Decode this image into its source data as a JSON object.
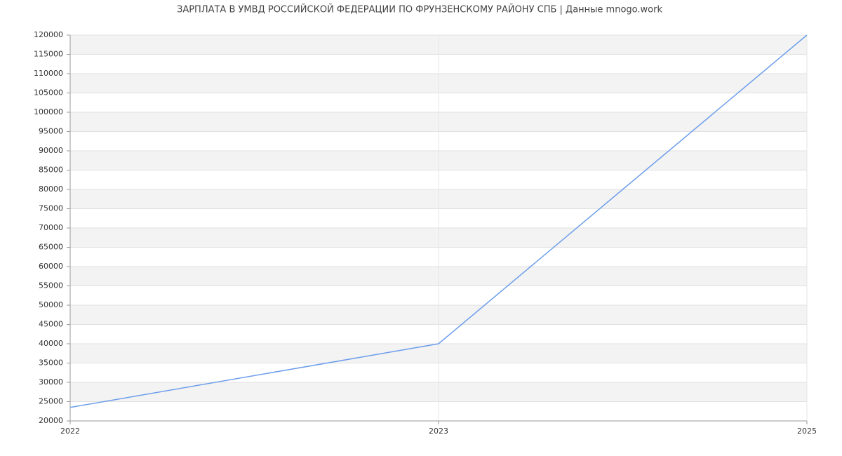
{
  "chart_data": {
    "type": "line",
    "title": "ЗАРПЛАТА В УМВД РОССИЙСКОЙ ФЕДЕРАЦИИ ПО ФРУНЗЕНСКОМУ РАЙОНУ СПБ | Данные mnogo.work",
    "categories": [
      "2022",
      "2023",
      "2025"
    ],
    "values": [
      23500,
      40000,
      120000
    ],
    "color": "#6d9eeb",
    "ylim": [
      20000,
      120000
    ],
    "yticks": [
      20000,
      25000,
      30000,
      35000,
      40000,
      45000,
      50000,
      55000,
      60000,
      65000,
      70000,
      75000,
      80000,
      85000,
      90000,
      95000,
      100000,
      105000,
      110000,
      115000,
      120000
    ],
    "grid": true
  }
}
